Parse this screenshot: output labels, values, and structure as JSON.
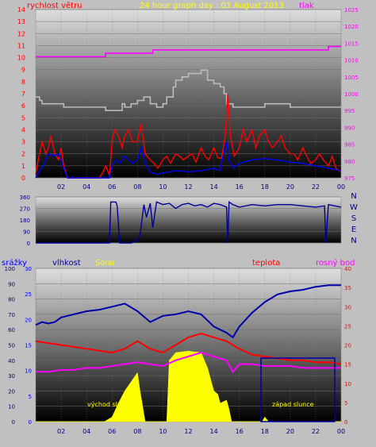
{
  "chart_data": [
    {
      "type": "line",
      "title": "24 hour graph day : 03 August 2013",
      "left_axis_label": "rychlost větru",
      "right_axis_label": "tlak",
      "left_ticks": [
        0,
        1,
        2,
        3,
        4,
        5,
        6,
        7,
        8,
        9,
        10,
        11,
        12,
        13,
        14
      ],
      "left_range": [
        0,
        14
      ],
      "right_ticks": [
        975,
        980,
        985,
        990,
        995,
        1000,
        1005,
        1010,
        1015,
        1020,
        1025
      ],
      "right_range": [
        975,
        1025
      ],
      "x_ticks": [
        "02",
        "04",
        "06",
        "08",
        "10",
        "12",
        "14",
        "16",
        "18",
        "20",
        "22",
        "00"
      ],
      "x_range_hours": [
        0,
        24
      ],
      "series": [
        {
          "axis": "right",
          "color": "#ff00ff",
          "hours": [
            0,
            5.3,
            5.5,
            9,
            9.2,
            13.5,
            14,
            15.5,
            15.7,
            19.5,
            20,
            22.8,
            23,
            24
          ],
          "values": [
            1011,
            1011,
            1012,
            1012,
            1013,
            1013,
            1013,
            1013,
            1013,
            1013,
            1013,
            1013,
            1014,
            1014
          ]
        },
        {
          "axis": "right",
          "color": "#bbbbbb",
          "hours": [
            0,
            0.3,
            0.5,
            2,
            2.2,
            5,
            5.5,
            6,
            6.8,
            7,
            7.5,
            8,
            8.5,
            9,
            9.5,
            10,
            10.3,
            10.8,
            11,
            11.5,
            12,
            12.5,
            13,
            13.5,
            14,
            14.5,
            14.8,
            15,
            15.5,
            16,
            17,
            18,
            19,
            20,
            21,
            22,
            23,
            24
          ],
          "values": [
            999,
            998,
            997,
            997,
            996,
            996,
            995,
            995,
            997,
            996,
            997,
            998,
            999,
            997,
            996,
            997,
            999,
            1002,
            1004,
            1005,
            1006,
            1006,
            1007,
            1004,
            1003,
            1002,
            1000,
            997,
            996,
            996,
            996,
            997,
            997,
            996,
            996,
            996,
            996,
            996
          ]
        },
        {
          "axis": "left",
          "color": "#ff0000",
          "hours": [
            0,
            0.2,
            0.5,
            0.8,
            1,
            1.2,
            1.5,
            1.8,
            2,
            2.2,
            2.5,
            3,
            5,
            5.3,
            5.5,
            5.8,
            6,
            6.2,
            6.5,
            6.8,
            7,
            7.3,
            7.6,
            8,
            8.3,
            8.6,
            9,
            9.3,
            9.6,
            10,
            10.3,
            10.6,
            11,
            11.3,
            11.6,
            12,
            12.3,
            12.6,
            13,
            13.3,
            13.6,
            14,
            14.3,
            14.6,
            14.9,
            15.1,
            15.3,
            15.6,
            16,
            16.3,
            16.6,
            17,
            17.3,
            17.6,
            18,
            18.3,
            18.6,
            19,
            19.3,
            19.6,
            20,
            20.3,
            20.6,
            21,
            21.3,
            21.6,
            22,
            22.3,
            22.6,
            23,
            23.3,
            23.6,
            24
          ],
          "values": [
            0.3,
            1.5,
            3,
            2,
            2.5,
            3.5,
            2,
            1.5,
            2.5,
            1,
            0,
            0,
            0,
            0.5,
            1,
            0.2,
            3,
            4,
            3.5,
            2.5,
            3.5,
            4,
            3,
            3,
            4.5,
            2,
            1.5,
            1.2,
            0.8,
            1.5,
            1.8,
            1.2,
            2,
            1.8,
            1.5,
            1.8,
            2,
            1.3,
            2.5,
            1.8,
            1.5,
            2.5,
            1.7,
            1.6,
            3.5,
            7,
            3.5,
            1.8,
            2.5,
            4,
            3,
            4,
            2.5,
            3.5,
            4,
            3,
            2.5,
            3,
            3.5,
            2.5,
            2,
            2,
            1.5,
            2.5,
            1.8,
            1.2,
            1.5,
            2,
            1.5,
            1,
            1.8,
            0.8,
            0.5
          ]
        },
        {
          "axis": "left",
          "color": "#0000ff",
          "hours": [
            0,
            0.3,
            0.6,
            1,
            1.4,
            1.8,
            2.2,
            2.5,
            5.8,
            6,
            6.3,
            6.6,
            7,
            7.3,
            7.6,
            8,
            8.3,
            8.6,
            9,
            9.5,
            10,
            11,
            12,
            13,
            14,
            14.5,
            14.8,
            15,
            15.2,
            15.5,
            16,
            17,
            18,
            19,
            20,
            21,
            22,
            23,
            24
          ],
          "values": [
            0,
            0.6,
            1,
            2,
            1.8,
            2,
            0.8,
            0,
            0,
            1,
            1.5,
            1.2,
            1.8,
            1.5,
            1.2,
            1.5,
            2.5,
            1.2,
            0.5,
            0.3,
            0.4,
            0.6,
            0.5,
            0.6,
            0.8,
            0.6,
            2.2,
            3,
            1.5,
            0.8,
            1.2,
            1.5,
            1.6,
            1.5,
            1.3,
            1.2,
            1,
            0.8,
            0.6
          ]
        }
      ]
    },
    {
      "type": "line",
      "title": "",
      "left_ticks": [
        0,
        90,
        180,
        270,
        360
      ],
      "left_range": [
        0,
        360
      ],
      "compass_labels": [
        "N",
        "W",
        "S",
        "E",
        "N"
      ],
      "x_range_hours": [
        0,
        24
      ],
      "series": [
        {
          "color": "#000099",
          "hours": [
            0,
            3,
            5.8,
            5.9,
            6.3,
            6.4,
            6.6,
            7.5,
            8,
            8.2,
            8.5,
            8.7,
            9,
            9.2,
            9.5,
            10,
            10.5,
            11,
            11.5,
            12,
            12.5,
            13,
            13.5,
            14,
            14.5,
            15,
            15.1,
            15.2,
            15.5,
            16,
            17,
            18,
            19,
            20,
            21,
            22,
            22.7,
            22.8,
            23,
            23.5,
            24
          ],
          "values": [
            0,
            0,
            0,
            320,
            320,
            290,
            0,
            0,
            20,
            60,
            300,
            200,
            310,
            120,
            320,
            300,
            310,
            270,
            300,
            310,
            290,
            300,
            280,
            310,
            300,
            280,
            0,
            320,
            300,
            280,
            300,
            290,
            300,
            300,
            290,
            280,
            290,
            0,
            300,
            290,
            280
          ]
        }
      ]
    },
    {
      "type": "line",
      "legend": [
        "srážky",
        "vlhkost",
        "Solar",
        "teplota",
        "rosný bod"
      ],
      "legend_colors": [
        "#0000ff",
        "#0000aa",
        "#ffff00",
        "#ff0000",
        "#ff00ff"
      ],
      "annotations": [
        "východ slunce",
        "západ slunce"
      ],
      "humidity_ticks": [
        0,
        10,
        20,
        30,
        40,
        50,
        60,
        70,
        80,
        90,
        100
      ],
      "humidity_range": [
        0,
        100
      ],
      "rain_ticks": [
        0,
        5,
        10,
        15,
        20,
        25,
        30
      ],
      "rain_range": [
        0,
        30
      ],
      "temp_ticks": [
        0,
        5,
        10,
        15,
        20,
        25,
        30,
        35,
        40
      ],
      "temp_range": [
        0,
        40
      ],
      "x_ticks": [
        "02",
        "04",
        "06",
        "08",
        "10",
        "12",
        "14",
        "16",
        "18",
        "20",
        "22",
        "00"
      ],
      "x_range_hours": [
        0,
        24
      ],
      "series": [
        {
          "name": "vlhkost",
          "axis": "humidity",
          "color": "#0000aa",
          "hours": [
            0,
            0.5,
            1,
            1.5,
            2,
            3,
            4,
            5,
            6,
            7,
            8,
            9,
            10,
            11,
            12,
            13,
            14,
            15,
            15.5,
            16,
            17,
            18,
            19,
            20,
            21,
            22,
            23,
            24
          ],
          "values": [
            63,
            65,
            64,
            65,
            68,
            70,
            72,
            73,
            75,
            77,
            72,
            65,
            69,
            70,
            72,
            70,
            62,
            58,
            55,
            62,
            71,
            78,
            83,
            85,
            86,
            88,
            89,
            89
          ]
        },
        {
          "name": "teplota",
          "axis": "temp",
          "color": "#ff0000",
          "hours": [
            0,
            1,
            2,
            3,
            4,
            5,
            6,
            7,
            8,
            9,
            10,
            11,
            12,
            13,
            14,
            15,
            16,
            17,
            18,
            19,
            20,
            21,
            22,
            23,
            24
          ],
          "values": [
            21,
            20.5,
            20,
            19.5,
            19,
            18.5,
            18,
            19,
            21,
            19,
            18,
            20,
            22,
            23,
            22,
            21,
            19,
            17.5,
            17,
            16.5,
            16,
            16,
            15.5,
            15.5,
            15
          ]
        },
        {
          "name": "rosný bod",
          "axis": "temp",
          "color": "#ff00ff",
          "hours": [
            0,
            1,
            2,
            3,
            4,
            5,
            6,
            7,
            8,
            9,
            10,
            11,
            12,
            13,
            14,
            15,
            15.5,
            16,
            17,
            18,
            19,
            20,
            21,
            22,
            23,
            24
          ],
          "values": [
            13,
            13,
            13.5,
            13.5,
            14,
            14,
            14.5,
            15,
            15.5,
            15,
            14.5,
            16,
            17,
            18,
            17,
            16,
            13,
            15,
            15,
            14.5,
            14.5,
            14.5,
            14,
            14,
            14,
            14
          ]
        },
        {
          "name": "Solar",
          "axis": "humidity",
          "color": "#ffff00",
          "fill": true,
          "hours": [
            0,
            5.4,
            6,
            6.5,
            7,
            7.5,
            8,
            8.2,
            8.4,
            8.6,
            10.3,
            10.5,
            11,
            12,
            13,
            13.5,
            14,
            14.3,
            14.5,
            15,
            15.2,
            15.4,
            17.8,
            18,
            18.3,
            24
          ],
          "values": [
            0,
            0,
            3,
            12,
            20,
            26,
            32,
            20,
            10,
            0,
            0,
            40,
            45,
            46,
            45,
            35,
            20,
            18,
            12,
            14,
            8,
            0,
            0,
            3,
            0,
            0
          ]
        }
      ]
    }
  ]
}
